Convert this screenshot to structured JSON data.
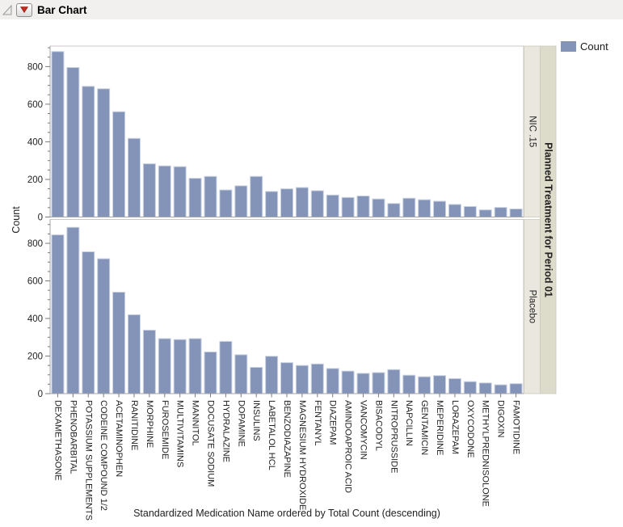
{
  "window": {
    "title": "Bar Chart"
  },
  "header": {
    "disclosure_icon": "outline-collapse-triangle",
    "menu_icon": "red-triangle-menu"
  },
  "legend": {
    "title": "Count"
  },
  "colors": {
    "bar": "#8394B8",
    "bar_edge": "#CBD3E2",
    "red_triangle": "#C42A1F",
    "strip_inner": "#EAE8DE",
    "strip_outer": "#DDDBC9",
    "strip_border": "#CCCABB",
    "panel_frame": "#C8C8C8",
    "axis_line": "#A6A6A6",
    "tick": "#7a7a7a",
    "text": "#1f1f1f",
    "header_bg": "#F1F0EE"
  },
  "chart_data": {
    "type": "bar",
    "title": "Bar Chart",
    "xlabel": "Standardized Medication Name ordered by Total Count (descending)",
    "ylabel": "Count",
    "legend": "Count",
    "legend_position": "top-right",
    "grid": false,
    "ylim": [
      0,
      900
    ],
    "y_major_ticks": [
      0,
      200,
      400,
      600,
      800
    ],
    "y_minor_tick_step": 50,
    "panel_group_label": "Planned Treatment for Period 01",
    "panel_labels": [
      "NIC .15",
      "Placebo"
    ],
    "categories": [
      "DEXAMETHASONE",
      "PHENOBARBITAL",
      "POTASSIUM SUPPLEMENTS",
      "CODEINE COMPOUND 1/2",
      "ACETAMINOPHEN",
      "RANITIDINE",
      "MORPHINE",
      "FUROSEMIDE",
      "MULTIVITAMINS",
      "MANNITOL",
      "DOCUSATE SODIUM",
      "HYDRALAZINE",
      "DOPAMINE",
      "INSULINS",
      "LABETALOL HCL",
      "BENZODIAZAPINE",
      "MAGNESIUM HYDROXIDE",
      "FENTANYL",
      "DIAZEPAM",
      "AMINDOAPROIC ACID",
      "VANCOMYCIN",
      "BISACODYL",
      "NITROPRUSSIDE",
      "NAPCILLIN",
      "GENTAMICIN",
      "MEPERIDINE",
      "LORAZEPAM",
      "OXYCODONE",
      "METHYLPREDNISOLONE",
      "DIGOXIN",
      "FAMOTIDINE"
    ],
    "series": [
      {
        "name": "NIC .15",
        "values": [
          880,
          795,
          695,
          682,
          560,
          418,
          283,
          272,
          268,
          206,
          216,
          144,
          166,
          216,
          136,
          150,
          157,
          140,
          117,
          104,
          112,
          96,
          72,
          100,
          92,
          84,
          67,
          56,
          38,
          51,
          43
        ]
      },
      {
        "name": "Placebo",
        "values": [
          845,
          885,
          755,
          718,
          540,
          420,
          338,
          293,
          288,
          293,
          222,
          278,
          207,
          140,
          199,
          165,
          150,
          158,
          134,
          120,
          108,
          112,
          128,
          98,
          90,
          96,
          80,
          64,
          57,
          47,
          53
        ]
      }
    ]
  }
}
